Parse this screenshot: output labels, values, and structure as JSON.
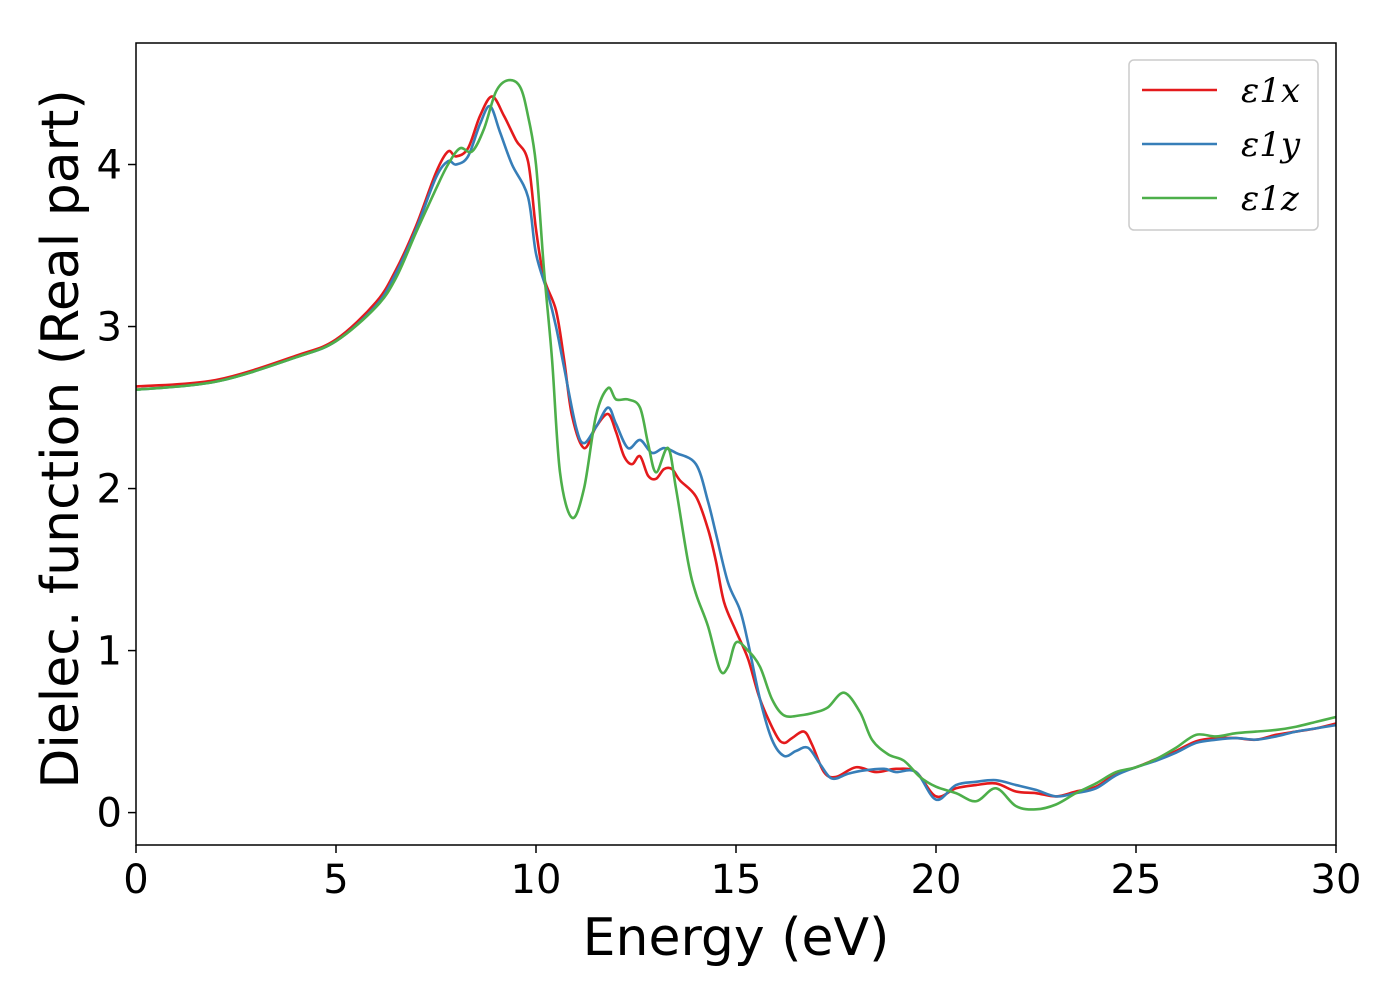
{
  "chart_data": {
    "type": "line",
    "title": "",
    "xlabel": "Energy (eV)",
    "ylabel": "Dielec. function (Real part)",
    "xlim": [
      0,
      30
    ],
    "ylim": [
      -0.2,
      4.75
    ],
    "xticks": [
      0,
      5,
      10,
      15,
      20,
      25,
      30
    ],
    "yticks": [
      0,
      1,
      2,
      3,
      4
    ],
    "grid": false,
    "legend_position": "top-right",
    "series": [
      {
        "name": "ε1x",
        "color": "#e41a1c",
        "points": [
          [
            0,
            2.63
          ],
          [
            2,
            2.67
          ],
          [
            4,
            2.82
          ],
          [
            5,
            2.92
          ],
          [
            6,
            3.15
          ],
          [
            6.5,
            3.35
          ],
          [
            7,
            3.62
          ],
          [
            7.5,
            3.95
          ],
          [
            7.8,
            4.08
          ],
          [
            8,
            4.05
          ],
          [
            8.3,
            4.1
          ],
          [
            8.6,
            4.3
          ],
          [
            8.9,
            4.42
          ],
          [
            9.2,
            4.3
          ],
          [
            9.5,
            4.15
          ],
          [
            9.8,
            4.02
          ],
          [
            10,
            3.6
          ],
          [
            10.2,
            3.3
          ],
          [
            10.5,
            3.1
          ],
          [
            10.7,
            2.8
          ],
          [
            10.9,
            2.45
          ],
          [
            11.2,
            2.25
          ],
          [
            11.5,
            2.38
          ],
          [
            11.8,
            2.46
          ],
          [
            12,
            2.35
          ],
          [
            12.2,
            2.2
          ],
          [
            12.4,
            2.15
          ],
          [
            12.6,
            2.2
          ],
          [
            12.8,
            2.08
          ],
          [
            13,
            2.06
          ],
          [
            13.2,
            2.12
          ],
          [
            13.4,
            2.12
          ],
          [
            13.6,
            2.05
          ],
          [
            14,
            1.95
          ],
          [
            14.3,
            1.75
          ],
          [
            14.5,
            1.55
          ],
          [
            14.7,
            1.3
          ],
          [
            15,
            1.12
          ],
          [
            15.3,
            0.95
          ],
          [
            15.6,
            0.7
          ],
          [
            16,
            0.48
          ],
          [
            16.2,
            0.43
          ],
          [
            16.4,
            0.46
          ],
          [
            16.7,
            0.5
          ],
          [
            16.9,
            0.42
          ],
          [
            17.2,
            0.25
          ],
          [
            17.5,
            0.22
          ],
          [
            18,
            0.28
          ],
          [
            18.5,
            0.25
          ],
          [
            19,
            0.27
          ],
          [
            19.5,
            0.25
          ],
          [
            20,
            0.1
          ],
          [
            20.5,
            0.15
          ],
          [
            21,
            0.17
          ],
          [
            21.5,
            0.18
          ],
          [
            22,
            0.13
          ],
          [
            22.5,
            0.12
          ],
          [
            23,
            0.1
          ],
          [
            23.5,
            0.13
          ],
          [
            24,
            0.16
          ],
          [
            24.5,
            0.24
          ],
          [
            25,
            0.28
          ],
          [
            25.5,
            0.33
          ],
          [
            26,
            0.38
          ],
          [
            26.5,
            0.44
          ],
          [
            27,
            0.46
          ],
          [
            27.5,
            0.46
          ],
          [
            28,
            0.45
          ],
          [
            28.5,
            0.48
          ],
          [
            29,
            0.5
          ],
          [
            29.5,
            0.52
          ],
          [
            30,
            0.55
          ]
        ]
      },
      {
        "name": "ε1y",
        "color": "#377eb8",
        "points": [
          [
            0,
            2.61
          ],
          [
            2,
            2.66
          ],
          [
            4,
            2.81
          ],
          [
            5,
            2.91
          ],
          [
            6,
            3.13
          ],
          [
            6.5,
            3.33
          ],
          [
            7,
            3.6
          ],
          [
            7.5,
            3.92
          ],
          [
            7.8,
            4.02
          ],
          [
            8,
            4.0
          ],
          [
            8.3,
            4.05
          ],
          [
            8.6,
            4.25
          ],
          [
            8.85,
            4.36
          ],
          [
            9.1,
            4.2
          ],
          [
            9.4,
            4.0
          ],
          [
            9.8,
            3.8
          ],
          [
            10,
            3.45
          ],
          [
            10.3,
            3.2
          ],
          [
            10.5,
            3.0
          ],
          [
            10.7,
            2.75
          ],
          [
            11,
            2.38
          ],
          [
            11.2,
            2.28
          ],
          [
            11.5,
            2.38
          ],
          [
            11.8,
            2.5
          ],
          [
            12,
            2.4
          ],
          [
            12.3,
            2.25
          ],
          [
            12.6,
            2.3
          ],
          [
            12.9,
            2.22
          ],
          [
            13.2,
            2.25
          ],
          [
            13.5,
            2.22
          ],
          [
            14,
            2.15
          ],
          [
            14.3,
            1.92
          ],
          [
            14.5,
            1.72
          ],
          [
            14.8,
            1.42
          ],
          [
            15.1,
            1.25
          ],
          [
            15.3,
            1.05
          ],
          [
            15.6,
            0.7
          ],
          [
            15.9,
            0.45
          ],
          [
            16.2,
            0.35
          ],
          [
            16.5,
            0.38
          ],
          [
            16.8,
            0.4
          ],
          [
            17.1,
            0.3
          ],
          [
            17.4,
            0.21
          ],
          [
            17.8,
            0.24
          ],
          [
            18.2,
            0.26
          ],
          [
            18.7,
            0.27
          ],
          [
            19,
            0.25
          ],
          [
            19.5,
            0.25
          ],
          [
            20,
            0.08
          ],
          [
            20.5,
            0.17
          ],
          [
            21,
            0.19
          ],
          [
            21.5,
            0.2
          ],
          [
            22,
            0.17
          ],
          [
            22.5,
            0.14
          ],
          [
            23,
            0.1
          ],
          [
            23.5,
            0.12
          ],
          [
            24,
            0.15
          ],
          [
            24.5,
            0.23
          ],
          [
            25,
            0.28
          ],
          [
            25.5,
            0.32
          ],
          [
            26,
            0.37
          ],
          [
            26.5,
            0.43
          ],
          [
            27,
            0.45
          ],
          [
            27.5,
            0.46
          ],
          [
            28,
            0.45
          ],
          [
            28.5,
            0.47
          ],
          [
            29,
            0.5
          ],
          [
            29.5,
            0.52
          ],
          [
            30,
            0.54
          ]
        ]
      },
      {
        "name": "ε1z",
        "color": "#4daf4a",
        "points": [
          [
            0,
            2.61
          ],
          [
            2,
            2.66
          ],
          [
            4,
            2.81
          ],
          [
            5,
            2.91
          ],
          [
            6,
            3.12
          ],
          [
            6.5,
            3.3
          ],
          [
            7,
            3.58
          ],
          [
            7.5,
            3.85
          ],
          [
            7.8,
            4.0
          ],
          [
            8.1,
            4.1
          ],
          [
            8.4,
            4.08
          ],
          [
            8.7,
            4.22
          ],
          [
            9,
            4.45
          ],
          [
            9.3,
            4.52
          ],
          [
            9.6,
            4.48
          ],
          [
            9.8,
            4.3
          ],
          [
            10,
            4.0
          ],
          [
            10.2,
            3.35
          ],
          [
            10.4,
            2.8
          ],
          [
            10.6,
            2.1
          ],
          [
            10.9,
            1.82
          ],
          [
            11.2,
            2.0
          ],
          [
            11.5,
            2.45
          ],
          [
            11.8,
            2.62
          ],
          [
            12,
            2.55
          ],
          [
            12.3,
            2.55
          ],
          [
            12.6,
            2.5
          ],
          [
            12.8,
            2.28
          ],
          [
            13,
            2.1
          ],
          [
            13.3,
            2.25
          ],
          [
            13.5,
            2.0
          ],
          [
            13.8,
            1.55
          ],
          [
            14,
            1.35
          ],
          [
            14.3,
            1.15
          ],
          [
            14.6,
            0.88
          ],
          [
            14.8,
            0.9
          ],
          [
            15,
            1.05
          ],
          [
            15.3,
            1.0
          ],
          [
            15.6,
            0.9
          ],
          [
            15.9,
            0.7
          ],
          [
            16.2,
            0.6
          ],
          [
            16.6,
            0.6
          ],
          [
            17,
            0.62
          ],
          [
            17.3,
            0.65
          ],
          [
            17.7,
            0.74
          ],
          [
            18.1,
            0.62
          ],
          [
            18.4,
            0.45
          ],
          [
            18.8,
            0.36
          ],
          [
            19.2,
            0.32
          ],
          [
            19.6,
            0.22
          ],
          [
            20,
            0.16
          ],
          [
            20.5,
            0.12
          ],
          [
            21,
            0.07
          ],
          [
            21.5,
            0.15
          ],
          [
            22,
            0.04
          ],
          [
            22.5,
            0.02
          ],
          [
            23,
            0.05
          ],
          [
            23.5,
            0.12
          ],
          [
            24,
            0.18
          ],
          [
            24.5,
            0.25
          ],
          [
            25,
            0.28
          ],
          [
            25.5,
            0.33
          ],
          [
            26,
            0.4
          ],
          [
            26.5,
            0.48
          ],
          [
            27,
            0.47
          ],
          [
            27.5,
            0.49
          ],
          [
            28,
            0.5
          ],
          [
            28.5,
            0.51
          ],
          [
            29,
            0.53
          ],
          [
            29.5,
            0.56
          ],
          [
            30,
            0.59
          ]
        ]
      }
    ]
  }
}
